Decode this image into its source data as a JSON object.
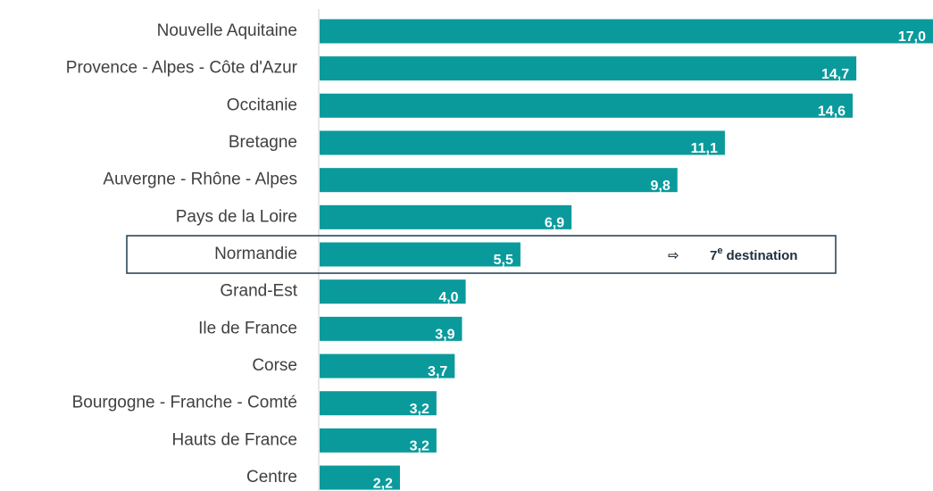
{
  "chart_data": {
    "type": "barh",
    "categories": [
      "Nouvelle Aquitaine",
      "Provence - Alpes - Côte d'Azur",
      "Occitanie",
      "Bretagne",
      "Auvergne - Rhône - Alpes",
      "Pays de la Loire",
      "Normandie",
      "Grand-Est",
      "Ile de France",
      "Corse",
      "Bourgogne - Franche - Comté",
      "Hauts de France",
      "Centre"
    ],
    "values": [
      17.0,
      14.7,
      14.6,
      11.1,
      9.8,
      6.9,
      5.5,
      4.0,
      3.9,
      3.7,
      3.2,
      3.2,
      2.2
    ],
    "value_labels": [
      "17,0",
      "14,7",
      "14,6",
      "11,1",
      "9,8",
      "6,9",
      "5,5",
      "4,0",
      "3,9",
      "3,7",
      "3,2",
      "3,2",
      "2,2"
    ],
    "color": "#0a9a9c",
    "xlim": [
      0,
      16.8
    ],
    "highlight": "Normandie",
    "annotation": {
      "arrow": "⇨",
      "rank": "7",
      "suffix": "e",
      "text": "destination"
    }
  }
}
